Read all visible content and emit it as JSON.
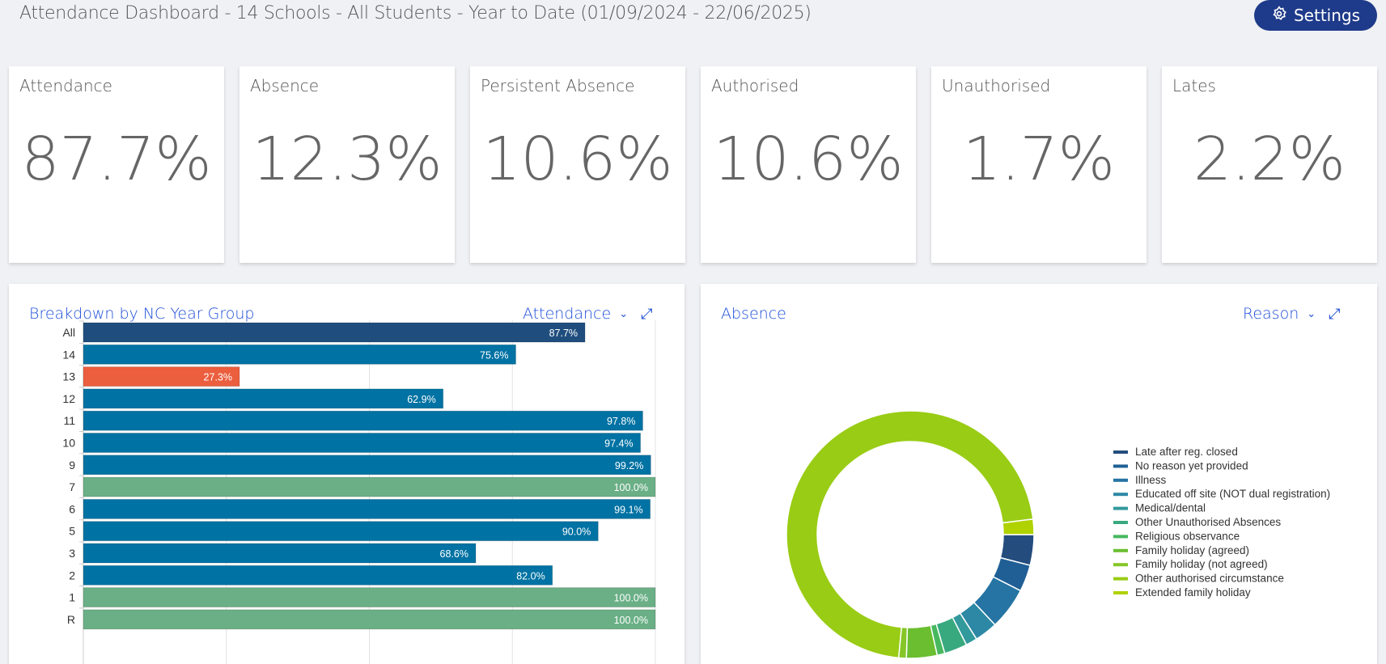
{
  "header": {
    "title": "Attendance Dashboard - 14 Schools - All Students - Year to Date (01/09/2024 - 22/06/2025)",
    "settings_label": "Settings"
  },
  "cards": [
    {
      "label": "Attendance",
      "value": "87.7%"
    },
    {
      "label": "Absence",
      "value": "12.3%"
    },
    {
      "label": "Persistent Absence",
      "value": "10.6%"
    },
    {
      "label": "Authorised",
      "value": "10.6%"
    },
    {
      "label": "Unauthorised",
      "value": "1.7%"
    },
    {
      "label": "Lates",
      "value": "2.2%"
    }
  ],
  "left_panel": {
    "title": "Breakdown by NC Year Group",
    "selector": "Attendance"
  },
  "right_panel": {
    "title": "Absence",
    "selector": "Reason"
  },
  "chart_data": [
    {
      "type": "bar",
      "orientation": "horizontal",
      "xlim": [
        0,
        100
      ],
      "grid": true,
      "categories": [
        "All",
        "14",
        "13",
        "12",
        "11",
        "10",
        "9",
        "7",
        "6",
        "5",
        "3",
        "2",
        "1",
        "R"
      ],
      "values": [
        87.7,
        75.6,
        27.3,
        62.9,
        97.8,
        97.4,
        99.2,
        100.0,
        99.1,
        90.0,
        68.6,
        82.0,
        100.0,
        100.0
      ],
      "labels": [
        "87.7%",
        "75.6%",
        "27.3%",
        "62.9%",
        "97.8%",
        "97.4%",
        "99.2%",
        "100.0%",
        "99.1%",
        "90.0%",
        "68.6%",
        "82.0%",
        "100.0%",
        "100.0%"
      ],
      "colors": [
        "#1f4e7e",
        "#0072a3",
        "#eb5e3e",
        "#0072a3",
        "#0072a3",
        "#0072a3",
        "#0072a3",
        "#6aaf86",
        "#0072a3",
        "#0072a3",
        "#0072a3",
        "#0072a3",
        "#6aaf86",
        "#6aaf86"
      ]
    },
    {
      "type": "pie",
      "donut": true,
      "legend": "right",
      "categories": [
        "Late after reg. closed",
        "No reason yet provided",
        "Illness",
        "Educated off site (NOT dual registration)",
        "Medical/dental",
        "Other Unauthorised Absences",
        "Religious observance",
        "Family holiday (agreed)",
        "Family holiday (not agreed)",
        "Other authorised circumstance",
        "Extended family holiday"
      ],
      "values": [
        4.0,
        3.5,
        5.5,
        3.0,
        1.5,
        3.0,
        1.0,
        4.0,
        1.0,
        71.5,
        2.0
      ],
      "colors": [
        "#244d7e",
        "#1f5f95",
        "#2574a3",
        "#2c88a4",
        "#32999c",
        "#38a97e",
        "#47b85e",
        "#6abe30",
        "#86c628",
        "#99cc14",
        "#b0d200"
      ]
    }
  ]
}
